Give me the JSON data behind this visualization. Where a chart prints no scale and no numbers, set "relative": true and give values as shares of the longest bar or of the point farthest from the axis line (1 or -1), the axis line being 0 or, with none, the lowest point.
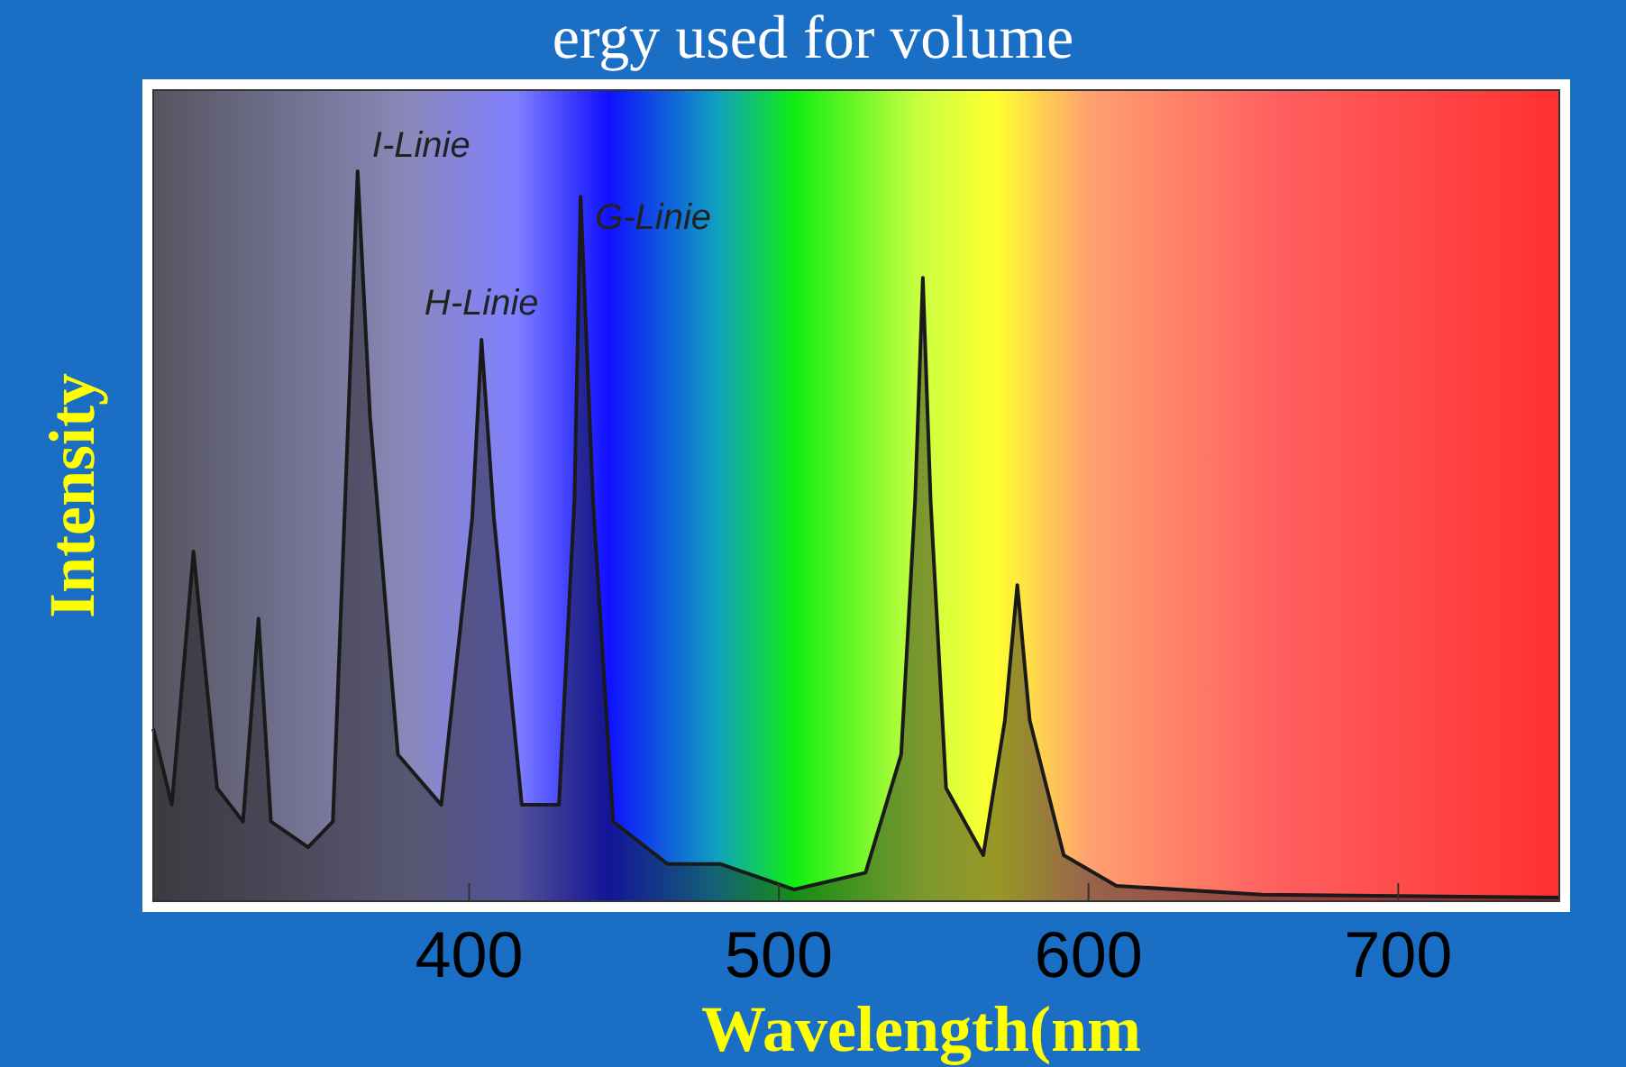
{
  "chart_data": {
    "type": "area",
    "title": "ergy used for volume",
    "xlabel": "Wavelength(nm",
    "ylabel": "Intensity",
    "relative": true,
    "xlim": [
      298,
      752
    ],
    "xticks": [
      400,
      500,
      600,
      700
    ],
    "tick_labels": "x",
    "x": [
      298,
      304,
      311,
      318.6,
      327,
      332,
      336,
      348,
      356,
      361,
      364,
      368,
      377,
      391,
      401,
      404,
      408,
      417,
      429,
      434,
      436,
      440,
      446.5,
      464,
      481,
      505,
      528,
      539.5,
      544,
      546.5,
      549,
      554,
      566,
      573,
      577,
      581,
      592,
      609,
      656,
      752
    ],
    "series": [
      {
        "color": "#1a1a1a",
        "values": [
          0.236,
          0.132,
          0.479,
          0.155,
          0.109,
          0.387,
          0.109,
          0.074,
          0.109,
          0.664,
          1.0,
          0.664,
          0.201,
          0.132,
          0.525,
          0.769,
          0.525,
          0.132,
          0.132,
          0.549,
          0.965,
          0.549,
          0.109,
          0.051,
          0.051,
          0.016,
          0.039,
          0.201,
          0.549,
          0.854,
          0.549,
          0.155,
          0.063,
          0.248,
          0.433,
          0.248,
          0.063,
          0.021,
          0.009,
          0.005
        ]
      }
    ],
    "annotations": [
      {
        "text": "I-Linie",
        "x": 364,
        "y": 1.0
      },
      {
        "text": "H-Linie",
        "x": 404,
        "y": 0.769
      },
      {
        "text": "G-Linie",
        "x": 436,
        "y": 0.965
      }
    ]
  }
}
